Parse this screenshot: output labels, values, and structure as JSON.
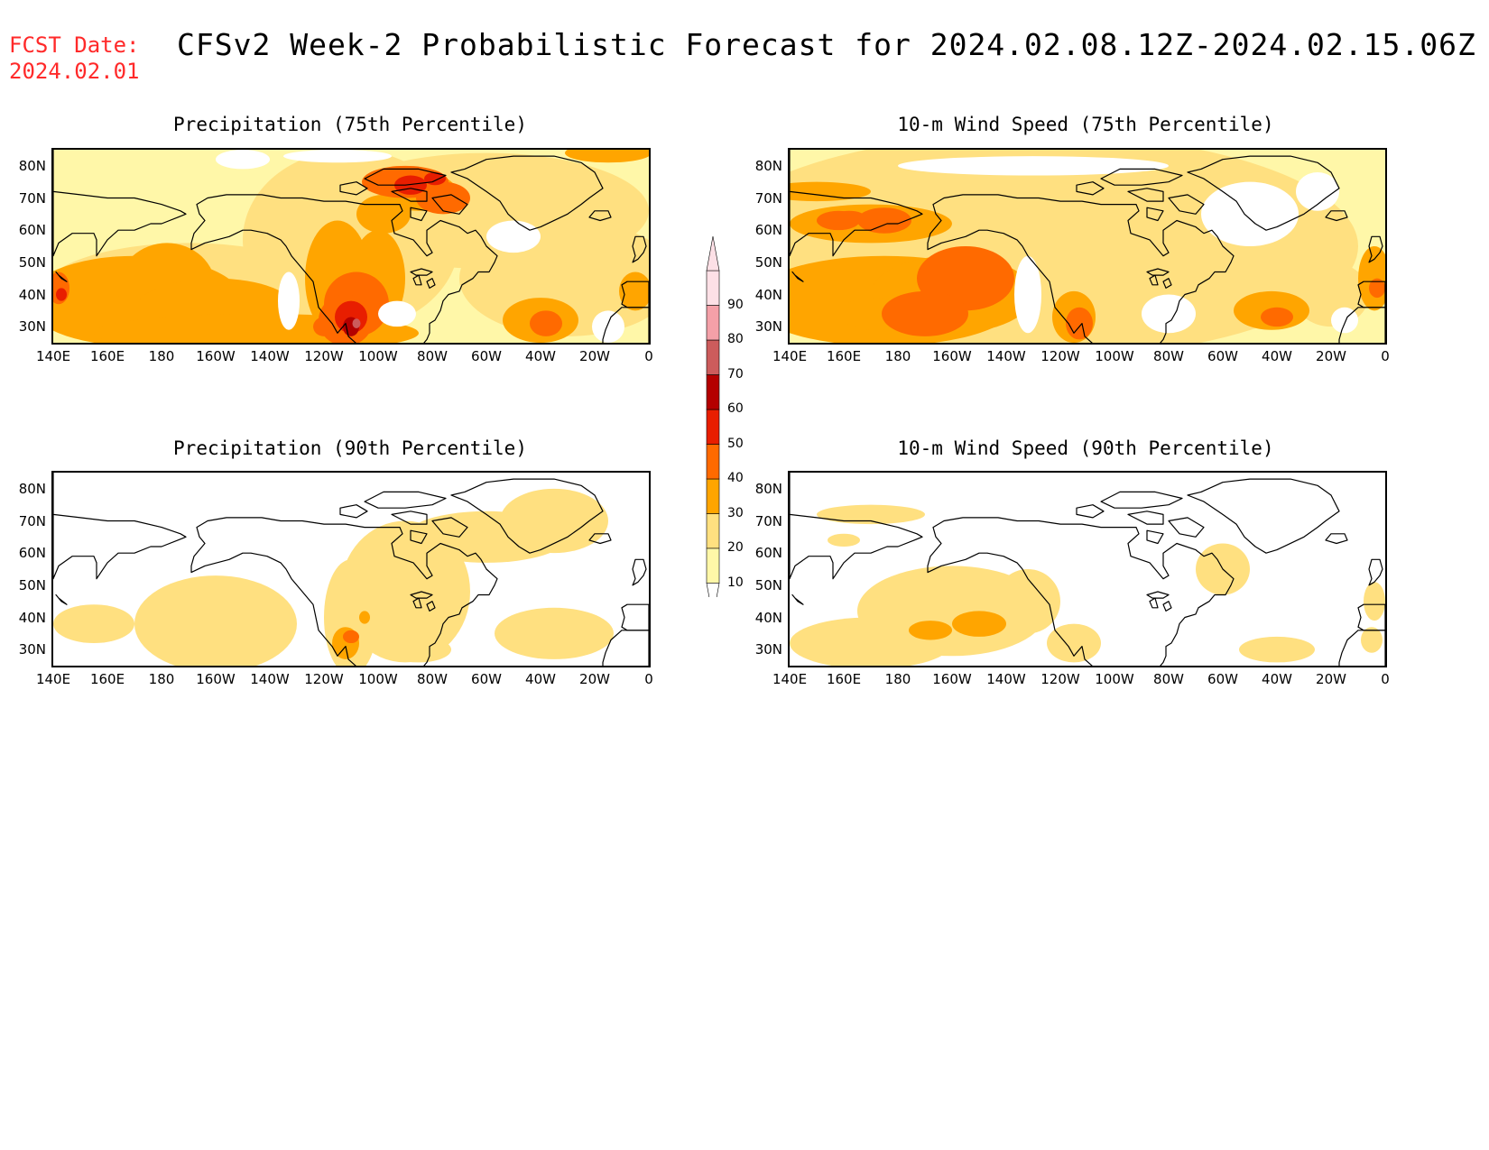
{
  "header": {
    "fcst_label": "FCST Date:",
    "fcst_date": "2024.02.01",
    "title": "CFSv2 Week-2 Probabilistic Forecast for 2024.02.08.12Z-2024.02.15.06Z"
  },
  "axes": {
    "lat_labels": [
      "80N",
      "70N",
      "60N",
      "50N",
      "40N",
      "30N"
    ],
    "lon_labels": [
      "140E",
      "160E",
      "180",
      "160W",
      "140W",
      "120W",
      "100W",
      "80W",
      "60W",
      "40W",
      "20W",
      "0"
    ]
  },
  "panels": [
    {
      "id": "precip75",
      "title": "Precipitation (75th Percentile)"
    },
    {
      "id": "wind75",
      "title": "10-m Wind Speed (75th Percentile)"
    },
    {
      "id": "precip90",
      "title": "Precipitation (90th Percentile)"
    },
    {
      "id": "wind90",
      "title": "10-m Wind Speed (90th Percentile)"
    }
  ],
  "colorbar": {
    "levels": [
      "10",
      "20",
      "30",
      "40",
      "50",
      "60",
      "70",
      "80",
      "90"
    ],
    "colors": [
      "#fff7a8",
      "#ffe080",
      "#ffa500",
      "#ff6a00",
      "#e81e00",
      "#b40000",
      "#cc5c5c",
      "#f4a0a8",
      "#fde0e6"
    ]
  }
}
